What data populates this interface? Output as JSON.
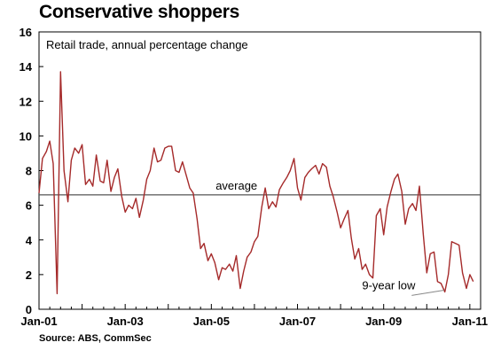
{
  "title": "Conservative shoppers",
  "source": "Source: ABS, CommSec",
  "chart_data": {
    "type": "line",
    "subtitle": "Retail trade, annual percentage change",
    "ylim": [
      0,
      16
    ],
    "yticks": [
      "0",
      "2",
      "4",
      "6",
      "8",
      "10",
      "12",
      "14",
      "16"
    ],
    "xlim": [
      2001.0,
      2011.25
    ],
    "xticks": [
      {
        "label": "Jan-01",
        "x": 2001.0
      },
      {
        "label": "Jan-03",
        "x": 2003.0
      },
      {
        "label": "Jan-05",
        "x": 2005.0
      },
      {
        "label": "Jan-07",
        "x": 2007.0
      },
      {
        "label": "Jan-09",
        "x": 2009.0
      },
      {
        "label": "Jan-11",
        "x": 2011.0
      }
    ],
    "grid": false,
    "line_color": "#a52a2a",
    "reference_line": {
      "label": "average",
      "value": 6.6,
      "color": "#555555"
    },
    "annotation": {
      "text": "9-year low",
      "x": 2010.4,
      "y": 1.1
    },
    "series": [
      {
        "x": [
          2001.0,
          2001.08,
          2001.17,
          2001.25,
          2001.33,
          2001.42,
          2001.5,
          2001.58,
          2001.67,
          2001.75,
          2001.83,
          2001.92,
          2002.0,
          2002.08,
          2002.17,
          2002.25,
          2002.33,
          2002.42,
          2002.5,
          2002.58,
          2002.67,
          2002.75,
          2002.83,
          2002.92,
          2003.0,
          2003.08,
          2003.17,
          2003.25,
          2003.33,
          2003.42,
          2003.5,
          2003.58,
          2003.67,
          2003.75,
          2003.83,
          2003.92,
          2004.0,
          2004.08,
          2004.17,
          2004.25,
          2004.33,
          2004.42,
          2004.5,
          2004.58,
          2004.67,
          2004.75,
          2004.83,
          2004.92,
          2005.0,
          2005.08,
          2005.17,
          2005.25,
          2005.33,
          2005.42,
          2005.5,
          2005.58,
          2005.67,
          2005.75,
          2005.83,
          2005.92,
          2006.0,
          2006.08,
          2006.17,
          2006.25,
          2006.33,
          2006.42,
          2006.5,
          2006.58,
          2006.67,
          2006.75,
          2006.83,
          2006.92,
          2007.0,
          2007.08,
          2007.17,
          2007.25,
          2007.33,
          2007.42,
          2007.5,
          2007.58,
          2007.67,
          2007.75,
          2007.83,
          2007.92,
          2008.0,
          2008.08,
          2008.17,
          2008.25,
          2008.33,
          2008.42,
          2008.5,
          2008.58,
          2008.67,
          2008.75,
          2008.83,
          2008.92,
          2009.0,
          2009.08,
          2009.17,
          2009.25,
          2009.33,
          2009.42,
          2009.5,
          2009.58,
          2009.67,
          2009.75,
          2009.83,
          2009.92,
          2010.0,
          2010.08,
          2010.17,
          2010.25,
          2010.33,
          2010.42,
          2010.5,
          2010.58,
          2010.67,
          2010.75,
          2010.83,
          2010.92,
          2011.0,
          2011.08
        ],
        "values": [
          6.7,
          8.7,
          9.1,
          9.7,
          8.4,
          0.9,
          13.7,
          8.0,
          6.2,
          8.6,
          9.3,
          9.0,
          9.5,
          7.2,
          7.5,
          7.1,
          8.9,
          7.4,
          7.3,
          8.6,
          6.8,
          7.6,
          8.1,
          6.5,
          5.6,
          6.0,
          5.8,
          6.4,
          5.3,
          6.3,
          7.5,
          8.0,
          9.3,
          8.5,
          8.6,
          9.3,
          9.4,
          9.4,
          8.0,
          7.9,
          8.5,
          7.7,
          7.0,
          6.7,
          5.2,
          3.5,
          3.8,
          2.8,
          3.2,
          2.7,
          1.7,
          2.4,
          2.3,
          2.6,
          2.2,
          3.1,
          1.2,
          2.2,
          3.0,
          3.3,
          3.9,
          4.2,
          5.9,
          7.0,
          5.8,
          6.2,
          5.9,
          6.9,
          7.3,
          7.6,
          8.0,
          8.7,
          7.0,
          6.3,
          7.6,
          7.9,
          8.1,
          8.3,
          7.8,
          8.4,
          8.2,
          7.1,
          6.5,
          5.6,
          4.7,
          5.2,
          5.7,
          4.1,
          2.9,
          3.5,
          2.3,
          2.6,
          2.0,
          1.8,
          5.4,
          5.8,
          4.3,
          5.9,
          6.8,
          7.5,
          7.8,
          6.8,
          4.9,
          5.8,
          6.1,
          5.7,
          7.1,
          4.3,
          2.1,
          3.2,
          3.3,
          1.6,
          1.5,
          1.0,
          2.0,
          3.9,
          3.8,
          3.7,
          2.1,
          1.2,
          2.0,
          1.6
        ]
      }
    ]
  }
}
